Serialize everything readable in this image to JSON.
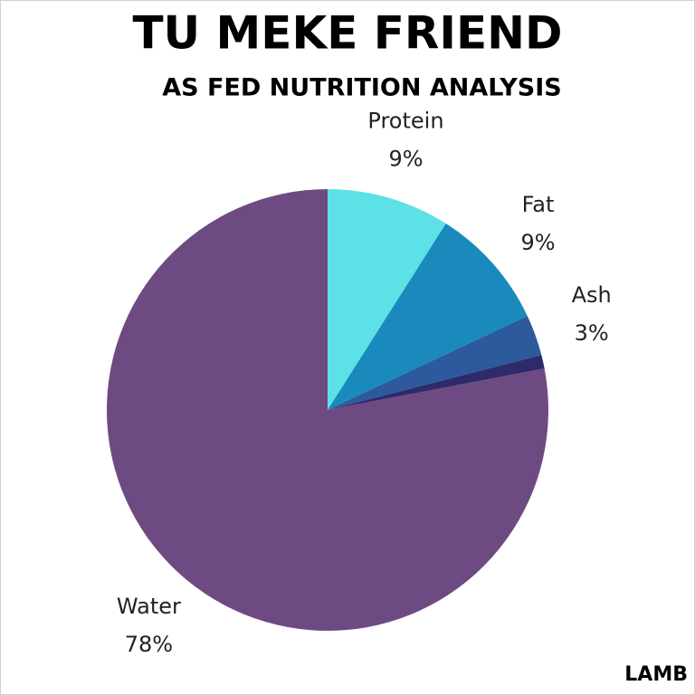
{
  "chart_data": {
    "type": "pie",
    "title": "TU MEKE FRIEND",
    "subtitle": "AS FED NUTRITION ANALYSIS",
    "footnote": "LAMB",
    "categories": [
      "Protein",
      "Fat",
      "Ash",
      null,
      "Water"
    ],
    "values": [
      9,
      9,
      3,
      1,
      78
    ],
    "value_labels": [
      "9%",
      "9%",
      "3%",
      null,
      "78%"
    ],
    "colors": [
      "#5ce1e6",
      "#1a8abd",
      "#2c5a9c",
      "#2e2a6b",
      "#6e4a82"
    ]
  }
}
